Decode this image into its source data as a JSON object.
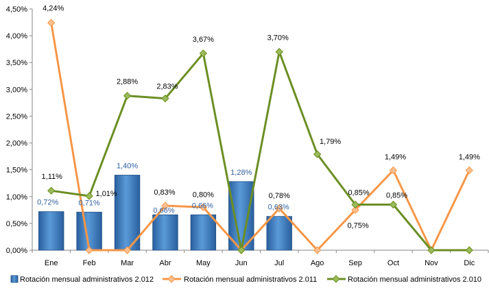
{
  "chart_data": {
    "type": "bar",
    "categories": [
      "Ene",
      "Feb",
      "Mar",
      "Abr",
      "May",
      "Jun",
      "Jul",
      "Ago",
      "Sep",
      "Oct",
      "Nov",
      "Dic"
    ],
    "y_ticks": [
      "0,00%",
      "0,50%",
      "1,00%",
      "1,50%",
      "2,00%",
      "2,50%",
      "3,00%",
      "3,50%",
      "4,00%",
      "4,50%"
    ],
    "ylim": [
      0,
      4.5
    ],
    "grid": false,
    "legend_position": "bottom",
    "series": [
      {
        "name": "Rotación mensual administrativos 2.012",
        "type": "bar",
        "color": "#4a86c8",
        "label_color": "#2f5f9e",
        "values": [
          0.72,
          0.71,
          1.4,
          0.66,
          0.66,
          1.28,
          0.63,
          null,
          null,
          null,
          null,
          null
        ],
        "labels": [
          "0,72%",
          "0,71%",
          "1,40%",
          "0,66%",
          "0,66%",
          "1,28%",
          "0,63%",
          "",
          "",
          "",
          "",
          ""
        ]
      },
      {
        "name": "Rotación mensual administrativos 2.011",
        "type": "line",
        "color": "#f79646",
        "label_color": "#000000",
        "values": [
          4.24,
          0,
          0,
          0.83,
          0.8,
          0,
          0.78,
          0,
          0.75,
          1.49,
          0,
          1.49
        ],
        "labels": [
          "4,24%",
          "",
          "",
          "0,83%",
          "0,80%",
          "",
          "0,78%",
          "",
          "0,75%",
          "1,49%",
          "",
          "1,49%"
        ]
      },
      {
        "name": "Rotación mensual administrativos 2.010",
        "type": "line",
        "color": "#6b8e23",
        "label_color": "#000000",
        "values": [
          1.11,
          1.01,
          2.88,
          2.83,
          3.67,
          0,
          3.7,
          1.79,
          0.85,
          0.85,
          0,
          0
        ],
        "labels": [
          "1,11%",
          "1,01%",
          "2,88%",
          "2,83%",
          "3,67%",
          "",
          "3,70%",
          "1,79%",
          "0,85%",
          "0,85%",
          "",
          ""
        ]
      }
    ]
  }
}
